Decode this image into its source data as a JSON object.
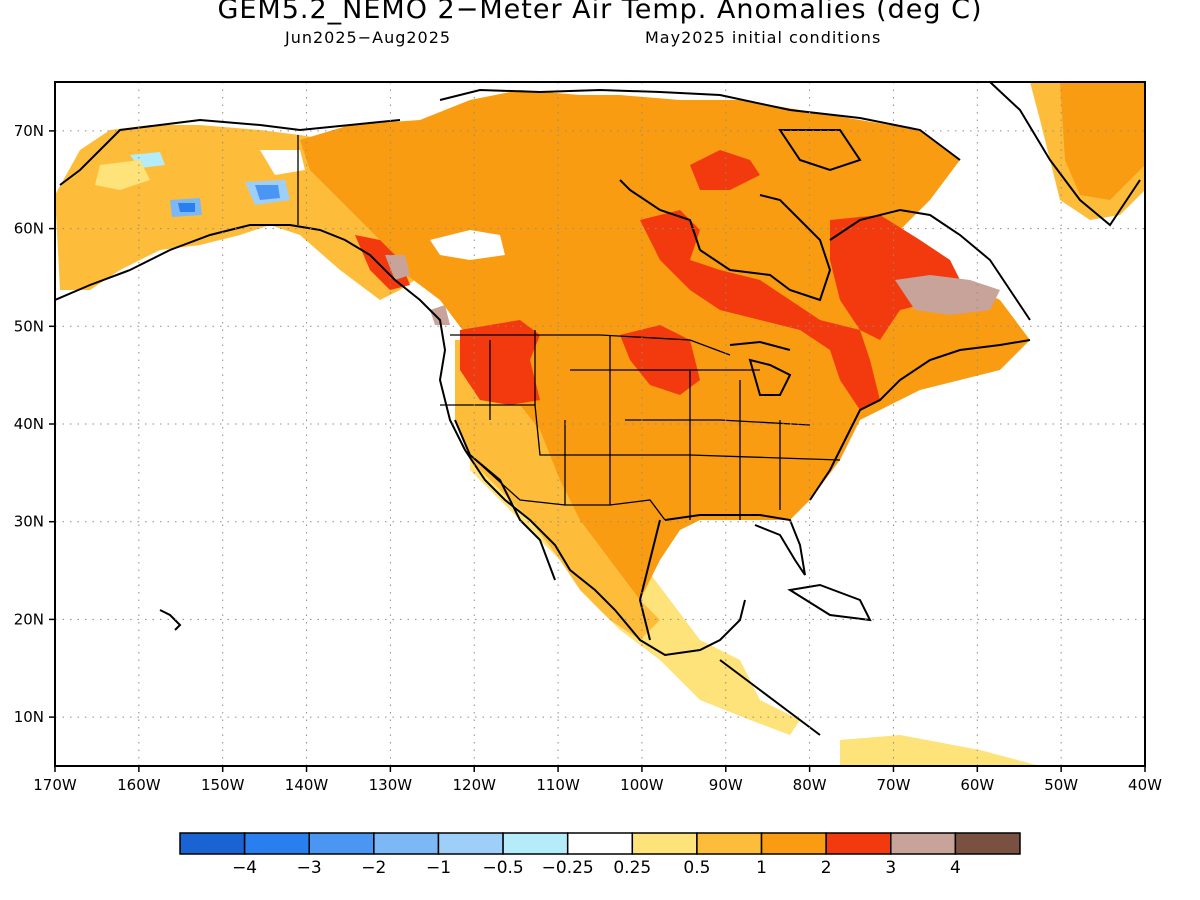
{
  "header": {
    "title": "GEM5.2_NEMO 2−Meter Air Temp. Anomalies (deg C)",
    "period": "Jun2025−Aug2025",
    "init": "May2025 initial conditions"
  },
  "map": {
    "region": "North America",
    "lon_range": [
      -170,
      -40
    ],
    "lat_range": [
      5,
      75
    ],
    "lon_labels": [
      "170W",
      "160W",
      "150W",
      "140W",
      "130W",
      "120W",
      "110W",
      "100W",
      "90W",
      "80W",
      "70W",
      "60W",
      "50W",
      "40W"
    ],
    "lat_labels": [
      "10N",
      "20N",
      "30N",
      "40N",
      "50N",
      "60N",
      "70N"
    ],
    "grid": "dotted"
  },
  "colorbar": {
    "colors": [
      "#1a63d2",
      "#2a7ff0",
      "#4b96f3",
      "#7db8f6",
      "#9ecff8",
      "#b5ecf9",
      "#ffffff",
      "#fee27a",
      "#fdbd3b",
      "#f99c12",
      "#f23a0e",
      "#c8a39a",
      "#7a5141"
    ],
    "labels": [
      "−4",
      "−3",
      "−2",
      "−1",
      "−0.5",
      "−0.25",
      "0.25",
      "0.5",
      "1",
      "2",
      "3",
      "4"
    ]
  }
}
